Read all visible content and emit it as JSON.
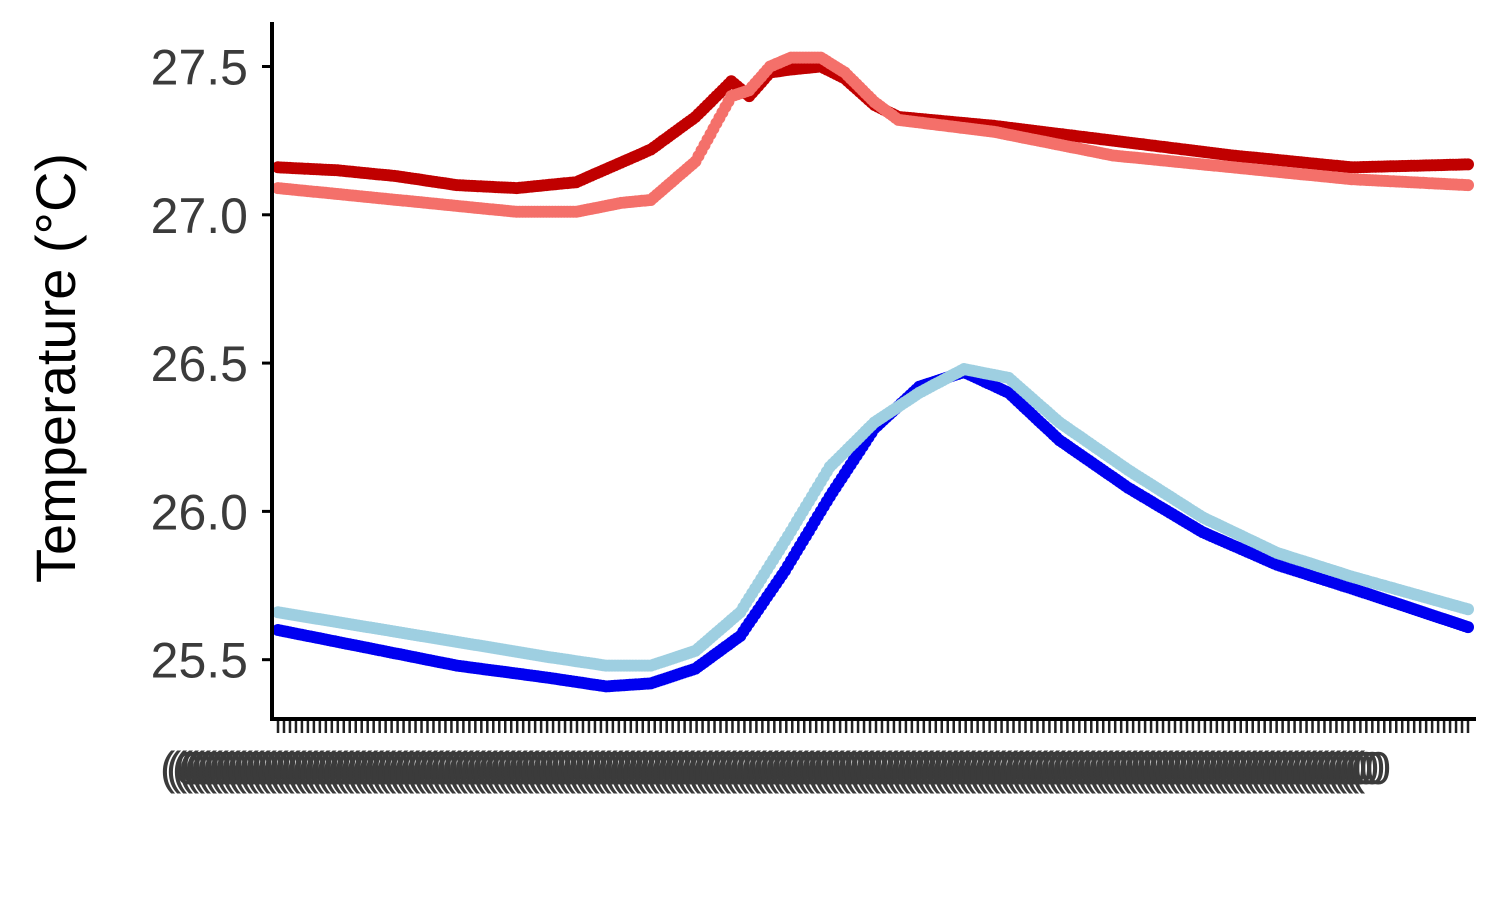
{
  "chart_data": {
    "type": "scatter",
    "ylabel": "Temperature (°C)",
    "ylim": [
      25.3,
      27.65
    ],
    "yticks": [
      25.5,
      26.0,
      26.5,
      27.0,
      27.5
    ],
    "ytick_labels": [
      "25.5",
      "26.0",
      "26.5",
      "27.0",
      "27.5"
    ],
    "x_count": 200,
    "xtick_label_text": "(0",
    "grid": false,
    "legend": "none",
    "series": [
      {
        "color": "#c00000",
        "keyframes": [
          [
            0,
            27.16
          ],
          [
            20,
            27.15
          ],
          [
            40,
            27.13
          ],
          [
            60,
            27.1
          ],
          [
            80,
            27.09
          ],
          [
            100,
            27.11
          ],
          [
            125,
            27.22
          ],
          [
            140,
            27.33
          ],
          [
            152,
            27.45
          ],
          [
            158,
            27.4
          ],
          [
            165,
            27.48
          ],
          [
            172,
            27.49
          ],
          [
            182,
            27.5
          ],
          [
            190,
            27.46
          ],
          [
            200,
            27.37
          ],
          [
            208,
            27.33
          ],
          [
            240,
            27.3
          ],
          [
            280,
            27.25
          ],
          [
            320,
            27.2
          ],
          [
            360,
            27.16
          ],
          [
            399,
            27.17
          ]
        ]
      },
      {
        "color": "#f4706a",
        "keyframes": [
          [
            0,
            27.09
          ],
          [
            20,
            27.07
          ],
          [
            40,
            27.05
          ],
          [
            60,
            27.03
          ],
          [
            80,
            27.01
          ],
          [
            100,
            27.01
          ],
          [
            115,
            27.04
          ],
          [
            125,
            27.05
          ],
          [
            140,
            27.18
          ],
          [
            152,
            27.4
          ],
          [
            158,
            27.42
          ],
          [
            165,
            27.5
          ],
          [
            172,
            27.53
          ],
          [
            182,
            27.53
          ],
          [
            190,
            27.48
          ],
          [
            200,
            27.38
          ],
          [
            208,
            27.32
          ],
          [
            240,
            27.28
          ],
          [
            280,
            27.2
          ],
          [
            320,
            27.16
          ],
          [
            360,
            27.12
          ],
          [
            399,
            27.1
          ]
        ]
      },
      {
        "color": "#0000f0",
        "keyframes": [
          [
            0,
            25.6
          ],
          [
            30,
            25.54
          ],
          [
            60,
            25.48
          ],
          [
            90,
            25.44
          ],
          [
            110,
            25.41
          ],
          [
            125,
            25.42
          ],
          [
            140,
            25.47
          ],
          [
            155,
            25.58
          ],
          [
            170,
            25.8
          ],
          [
            185,
            26.05
          ],
          [
            200,
            26.28
          ],
          [
            215,
            26.42
          ],
          [
            230,
            26.47
          ],
          [
            245,
            26.4
          ],
          [
            262,
            26.24
          ],
          [
            285,
            26.08
          ],
          [
            310,
            25.93
          ],
          [
            335,
            25.82
          ],
          [
            360,
            25.74
          ],
          [
            399,
            25.61
          ]
        ]
      },
      {
        "color": "#9ecfe1",
        "keyframes": [
          [
            0,
            25.66
          ],
          [
            30,
            25.61
          ],
          [
            60,
            25.56
          ],
          [
            90,
            25.51
          ],
          [
            110,
            25.48
          ],
          [
            125,
            25.48
          ],
          [
            140,
            25.53
          ],
          [
            155,
            25.66
          ],
          [
            170,
            25.9
          ],
          [
            185,
            26.15
          ],
          [
            200,
            26.3
          ],
          [
            215,
            26.4
          ],
          [
            230,
            26.48
          ],
          [
            245,
            26.45
          ],
          [
            262,
            26.3
          ],
          [
            285,
            26.14
          ],
          [
            310,
            25.98
          ],
          [
            335,
            25.86
          ],
          [
            360,
            25.78
          ],
          [
            399,
            25.67
          ]
        ]
      }
    ]
  }
}
